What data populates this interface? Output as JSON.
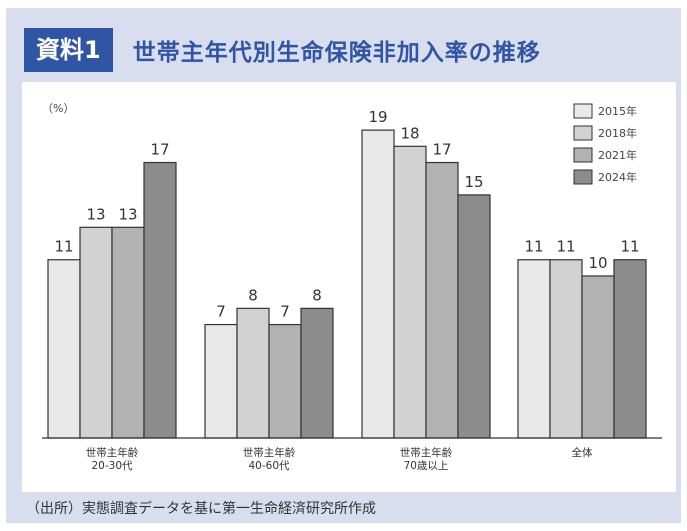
{
  "header": {
    "badge": "資料1",
    "title": "世帯主年代別生命保険非加入率の推移"
  },
  "source": "（出所）実態調査データを基に第一生命経済研究所作成",
  "colors": {
    "accent": "#2f55a4",
    "frame": "#d9deee",
    "series": [
      "#e9e9e9",
      "#d2d2d2",
      "#b2b2b2",
      "#8c8c8c"
    ]
  },
  "chart_data": {
    "type": "bar",
    "ylabel": "（%）",
    "categories": [
      [
        "世帯主年齢",
        "20-30代"
      ],
      [
        "世帯主年齢",
        "40-60代"
      ],
      [
        "世帯主年齢",
        "70歳以上"
      ],
      [
        "全体"
      ]
    ],
    "series": [
      {
        "name": "2015年",
        "values": [
          11,
          7,
          19,
          11
        ]
      },
      {
        "name": "2018年",
        "values": [
          13,
          8,
          18,
          11
        ]
      },
      {
        "name": "2021年",
        "values": [
          13,
          7,
          17,
          10
        ]
      },
      {
        "name": "2024年",
        "values": [
          17,
          8,
          15,
          11
        ]
      }
    ],
    "ylim": [
      0,
      19.5
    ],
    "grid": false,
    "legend": "top-right"
  }
}
